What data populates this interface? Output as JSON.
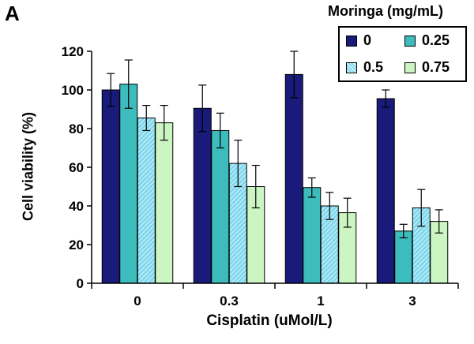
{
  "panel_label": "A",
  "chart_data": {
    "type": "bar",
    "title": "",
    "xlabel": "Cisplatin (uMol/L)",
    "ylabel": "Cell viability (%)",
    "ylim": [
      0,
      120
    ],
    "yticks": [
      "0",
      "20",
      "40",
      "60",
      "80",
      "100",
      "120"
    ],
    "categories": [
      "0",
      "0.3",
      "1",
      "3"
    ],
    "legend_title": "Moringa (mg/mL)",
    "legend_position": "top-right",
    "grid": false,
    "series": [
      {
        "name": "0",
        "color": "#1a1a7a",
        "pattern": "solid",
        "values": [
          100,
          90.5,
          108,
          95.5
        ],
        "errors": [
          8.5,
          12,
          12,
          4.5
        ]
      },
      {
        "name": "0.25",
        "color": "#3cbcbc",
        "pattern": "solid",
        "values": [
          103,
          79,
          49.5,
          27
        ],
        "errors": [
          12.5,
          9,
          5,
          3.5
        ]
      },
      {
        "name": "0.5",
        "color": "#7fd8ee",
        "pattern": "hatched",
        "values": [
          85.5,
          62,
          40,
          39
        ],
        "errors": [
          6.5,
          12,
          7,
          9.5
        ]
      },
      {
        "name": "0.75",
        "color": "#ccf5c4",
        "pattern": "solid",
        "values": [
          83,
          50,
          36.5,
          32
        ],
        "errors": [
          9,
          11,
          7.5,
          6
        ]
      }
    ]
  }
}
